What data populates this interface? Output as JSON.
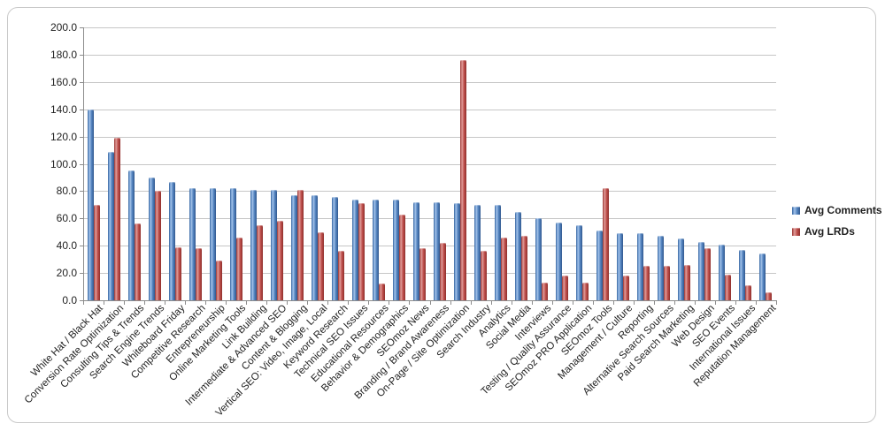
{
  "window": {
    "background": "#ffffff",
    "border_color": "#c9c9c9"
  },
  "chart_data": {
    "type": "bar",
    "title": "",
    "xlabel": "",
    "ylabel": "",
    "ylim": [
      0,
      200
    ],
    "ytick_step": 20,
    "ytick_labels": [
      "0.0",
      "20.0",
      "40.0",
      "60.0",
      "80.0",
      "100.0",
      "120.0",
      "140.0",
      "160.0",
      "180.0",
      "200.0"
    ],
    "grid": "horizontal",
    "legend_position": "right",
    "categories": [
      "White Hat / Black Hat",
      "Conversion Rate Optimization",
      "Consulting Tips & Trends",
      "Search Engine Trends",
      "Whiteboard Friday",
      "Competitive Research",
      "Entrepreneurship",
      "Online Marketing Tools",
      "Link Building",
      "Intermediate & Advanced SEO",
      "Content & Blogging",
      "Vertical SEO: Video, Image, Local",
      "Keyword Research",
      "Technical SEO Issues",
      "Educational Resources",
      "Behavior & Demographics",
      "SEOmoz News",
      "Branding / Brand Awareness",
      "On-Page / Site Optimization",
      "Search Industry",
      "Analytics",
      "Social Media",
      "Interviews",
      "Testing / Quality Assurance",
      "SEOmoz PRO Application",
      "SEOmoz Tools",
      "Management / Culture",
      "Reporting",
      "Alternative Search Sources",
      "Paid Search Marketing",
      "Web Design",
      "SEO Events",
      "International Issues",
      "Reputation Management"
    ],
    "series": [
      {
        "name": "Avg Comments",
        "color": "#4F81BD",
        "values": [
          140,
          109,
          95,
          90,
          87,
          82,
          82,
          82,
          81,
          81,
          77,
          77,
          76,
          74,
          74,
          74,
          72,
          72,
          71,
          70,
          70,
          65,
          60,
          57,
          55,
          51,
          49,
          49,
          47,
          45,
          43,
          41,
          37,
          34
        ]
      },
      {
        "name": "Avg LRDs",
        "color": "#C0504D",
        "values": [
          70,
          119,
          56,
          80,
          39,
          38,
          29,
          46,
          55,
          58,
          81,
          50,
          36,
          71,
          12,
          63,
          38,
          42,
          176,
          36,
          46,
          47,
          13,
          18,
          13,
          82,
          18,
          25,
          25,
          26,
          38,
          19,
          11,
          6
        ]
      }
    ]
  }
}
